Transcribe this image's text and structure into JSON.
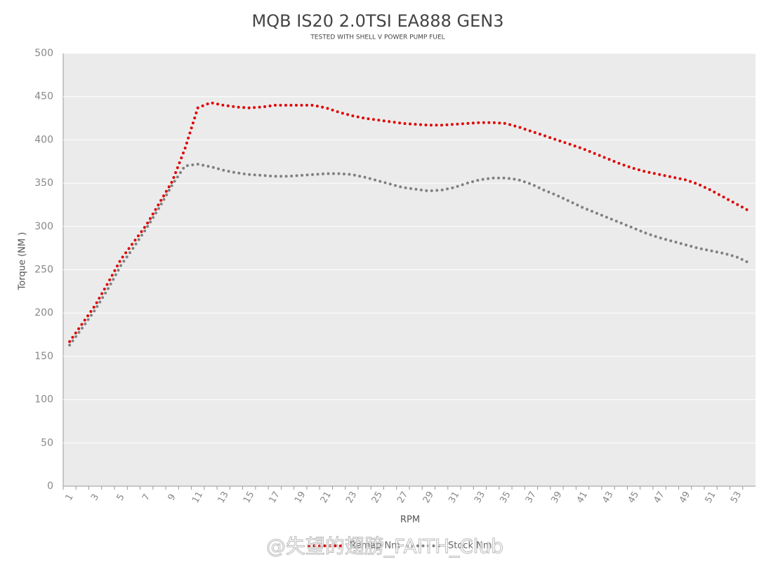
{
  "chart_data": {
    "type": "line",
    "title": "MQB IS20 2.0TSI EA888  GEN3",
    "subtitle": "TESTED WITH SHELL V POWER PUMP FUEL",
    "x_label": "RPM",
    "y_label": "Torque (NM )",
    "watermark": "@失望的翅膀_FAITH_Club",
    "categories": [
      "1",
      null,
      "3",
      null,
      "5",
      null,
      "7",
      null,
      "9",
      null,
      "11",
      null,
      "13",
      null,
      "15",
      null,
      "17",
      null,
      "19",
      null,
      "21",
      null,
      "23",
      null,
      "25",
      null,
      "27",
      null,
      "29",
      null,
      "31",
      null,
      "33",
      null,
      "35",
      null,
      "37",
      null,
      "39",
      null,
      "41",
      null,
      "43",
      null,
      "45",
      null,
      "47",
      null,
      "49",
      null,
      "51",
      null,
      "53",
      null
    ],
    "series": [
      {
        "name": "Remap Nm",
        "color": "#e00000",
        "values": [
          167,
          188,
          209,
          235,
          262,
          282,
          302,
          327,
          352,
          390,
          437,
          443,
          440,
          438,
          437,
          438,
          440,
          440,
          440,
          440,
          437,
          432,
          428,
          425,
          423,
          421,
          419,
          418,
          417,
          417,
          418,
          419,
          420,
          420,
          419,
          415,
          410,
          405,
          400,
          395,
          390,
          384,
          378,
          372,
          367,
          363,
          360,
          357,
          354,
          349,
          342,
          334,
          326,
          318
        ]
      },
      {
        "name": "Stock Nm",
        "color": "#808080",
        "values": [
          163,
          183,
          204,
          228,
          255,
          276,
          298,
          322,
          348,
          370,
          372,
          369,
          365,
          362,
          360,
          359,
          358,
          358,
          359,
          360,
          361,
          361,
          360,
          357,
          353,
          349,
          345,
          343,
          341,
          342,
          345,
          350,
          354,
          356,
          356,
          354,
          349,
          342,
          336,
          329,
          322,
          316,
          310,
          304,
          298,
          292,
          287,
          283,
          279,
          275,
          272,
          269,
          265,
          258
        ]
      }
    ],
    "ylim": [
      0,
      500
    ],
    "yticks": [
      0,
      50,
      100,
      150,
      200,
      250,
      300,
      350,
      400,
      450,
      500
    ],
    "grid": true
  }
}
